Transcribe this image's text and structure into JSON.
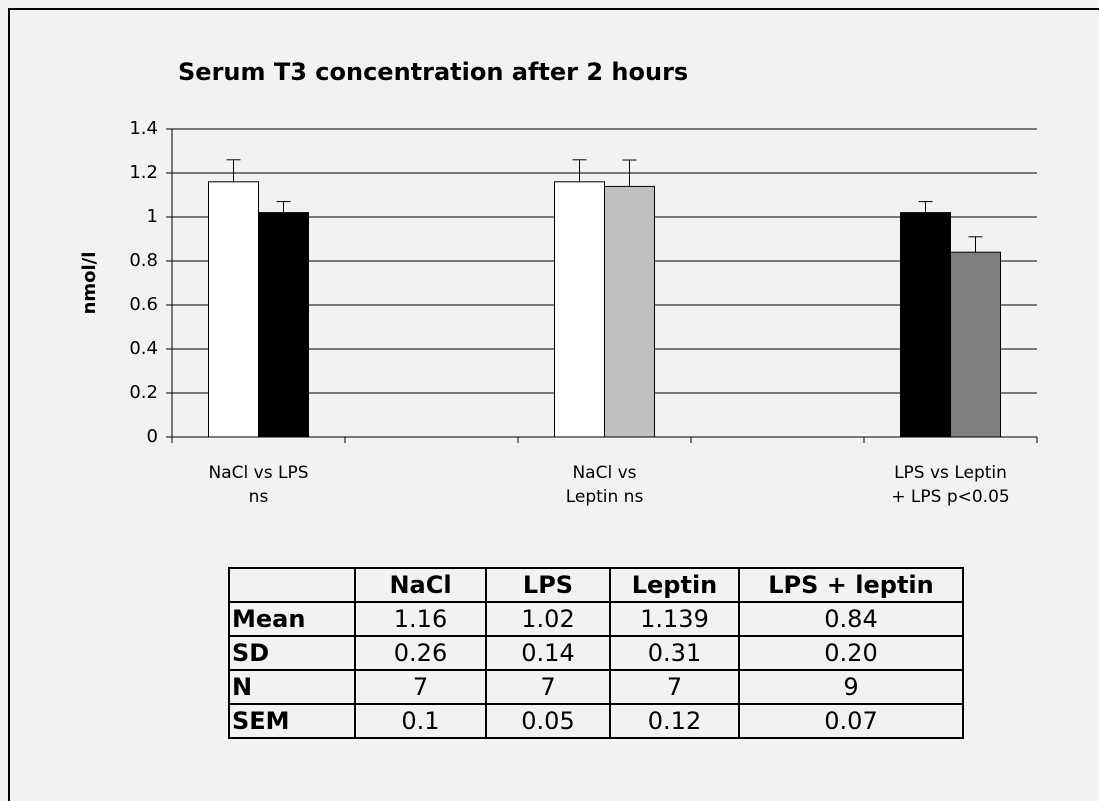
{
  "chart_data": {
    "type": "bar",
    "title": "Serum T3 concentration after 2 hours",
    "y_label": "nmol/l",
    "categories": [
      "NaCl vs LPS\nns",
      null,
      "NaCl vs\nLeptin ns",
      null,
      "LPS vs Leptin\n+ LPS  p<0.05"
    ],
    "series": [
      {
        "color": "#ffffff",
        "values": [
          1.16,
          null,
          1.16,
          null,
          null
        ],
        "errors": [
          0.1,
          null,
          0.1,
          null,
          null
        ]
      },
      {
        "color": "#000000",
        "values": [
          1.02,
          null,
          null,
          null,
          1.02
        ],
        "errors": [
          0.05,
          null,
          null,
          null,
          0.05
        ]
      },
      {
        "color": "#c0c0c0",
        "values": [
          null,
          null,
          1.139,
          null,
          null
        ],
        "errors": [
          null,
          null,
          0.12,
          null,
          null
        ]
      },
      {
        "color": "#808080",
        "values": [
          null,
          null,
          null,
          null,
          0.84
        ],
        "errors": [
          null,
          null,
          null,
          null,
          0.07
        ]
      }
    ],
    "ylim": [
      0,
      1.4
    ],
    "yticks": [
      0,
      0.2,
      0.4,
      0.6,
      0.8,
      1,
      1.2,
      1.4
    ],
    "grid": true
  },
  "table": {
    "columns": [
      "NaCl",
      "LPS",
      "Leptin",
      "LPS + leptin"
    ],
    "rows": [
      {
        "label": "Mean",
        "cells": [
          "1.16",
          "1.02",
          "1.139",
          "0.84"
        ]
      },
      {
        "label": "SD",
        "cells": [
          "0.26",
          "0.14",
          "0.31",
          "0.20"
        ]
      },
      {
        "label": "N",
        "cells": [
          "7",
          "7",
          "7",
          "9"
        ]
      },
      {
        "label": "SEM",
        "cells": [
          "0.1",
          "0.05",
          "0.12",
          "0.07"
        ]
      }
    ]
  }
}
